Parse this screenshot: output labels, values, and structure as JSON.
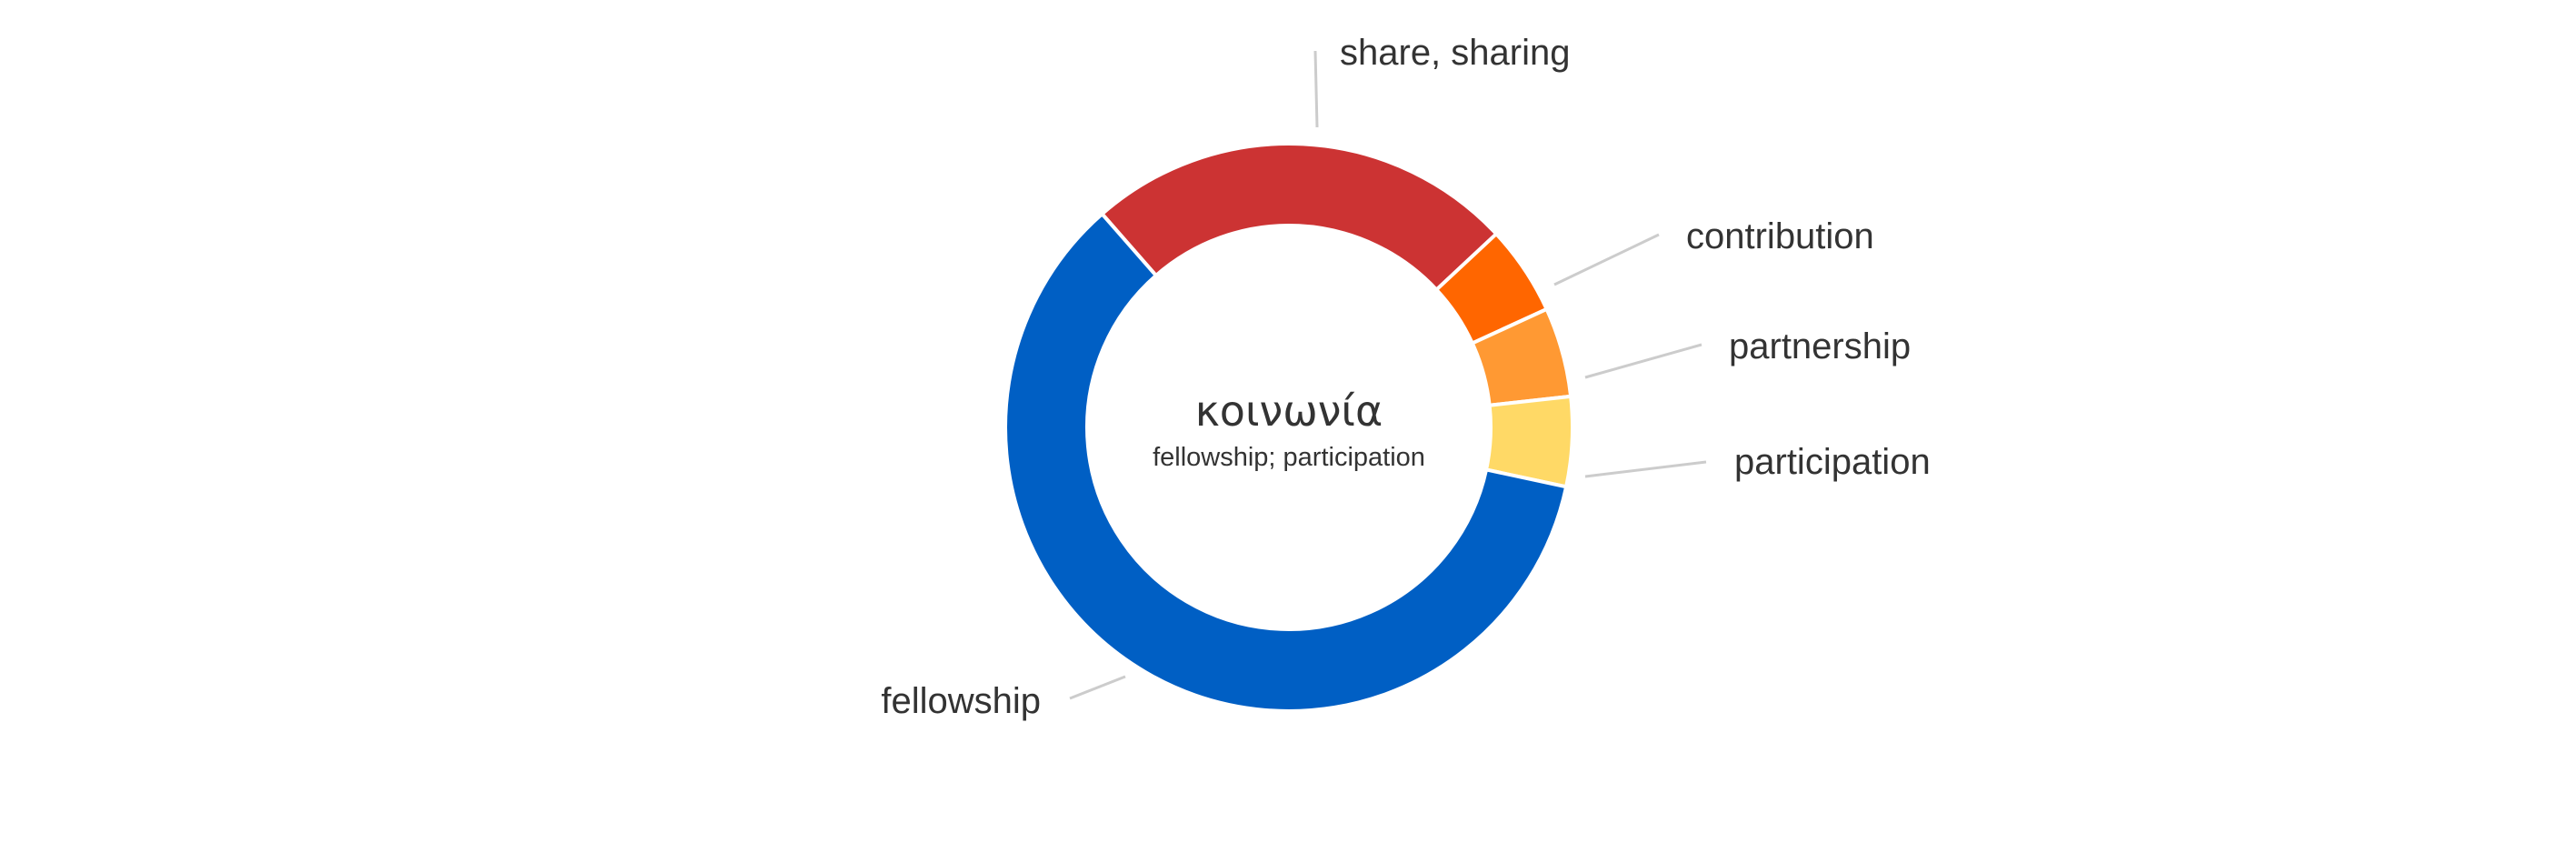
{
  "chart_data": {
    "type": "pie",
    "donut": true,
    "title": "κοινωνία",
    "subtitle": "fellowship; participation",
    "legend": "none",
    "slices": [
      {
        "label": "share, sharing",
        "value": 24.5,
        "color": "#cc3333"
      },
      {
        "label": "contribution",
        "value": 5.1,
        "color": "#ff6600"
      },
      {
        "label": "partnership",
        "value": 5.1,
        "color": "#ff9933"
      },
      {
        "label": "participation",
        "value": 5.1,
        "color": "#ffd966"
      },
      {
        "label": "fellowship",
        "value": 60.2,
        "color": "#005fc4"
      }
    ]
  }
}
